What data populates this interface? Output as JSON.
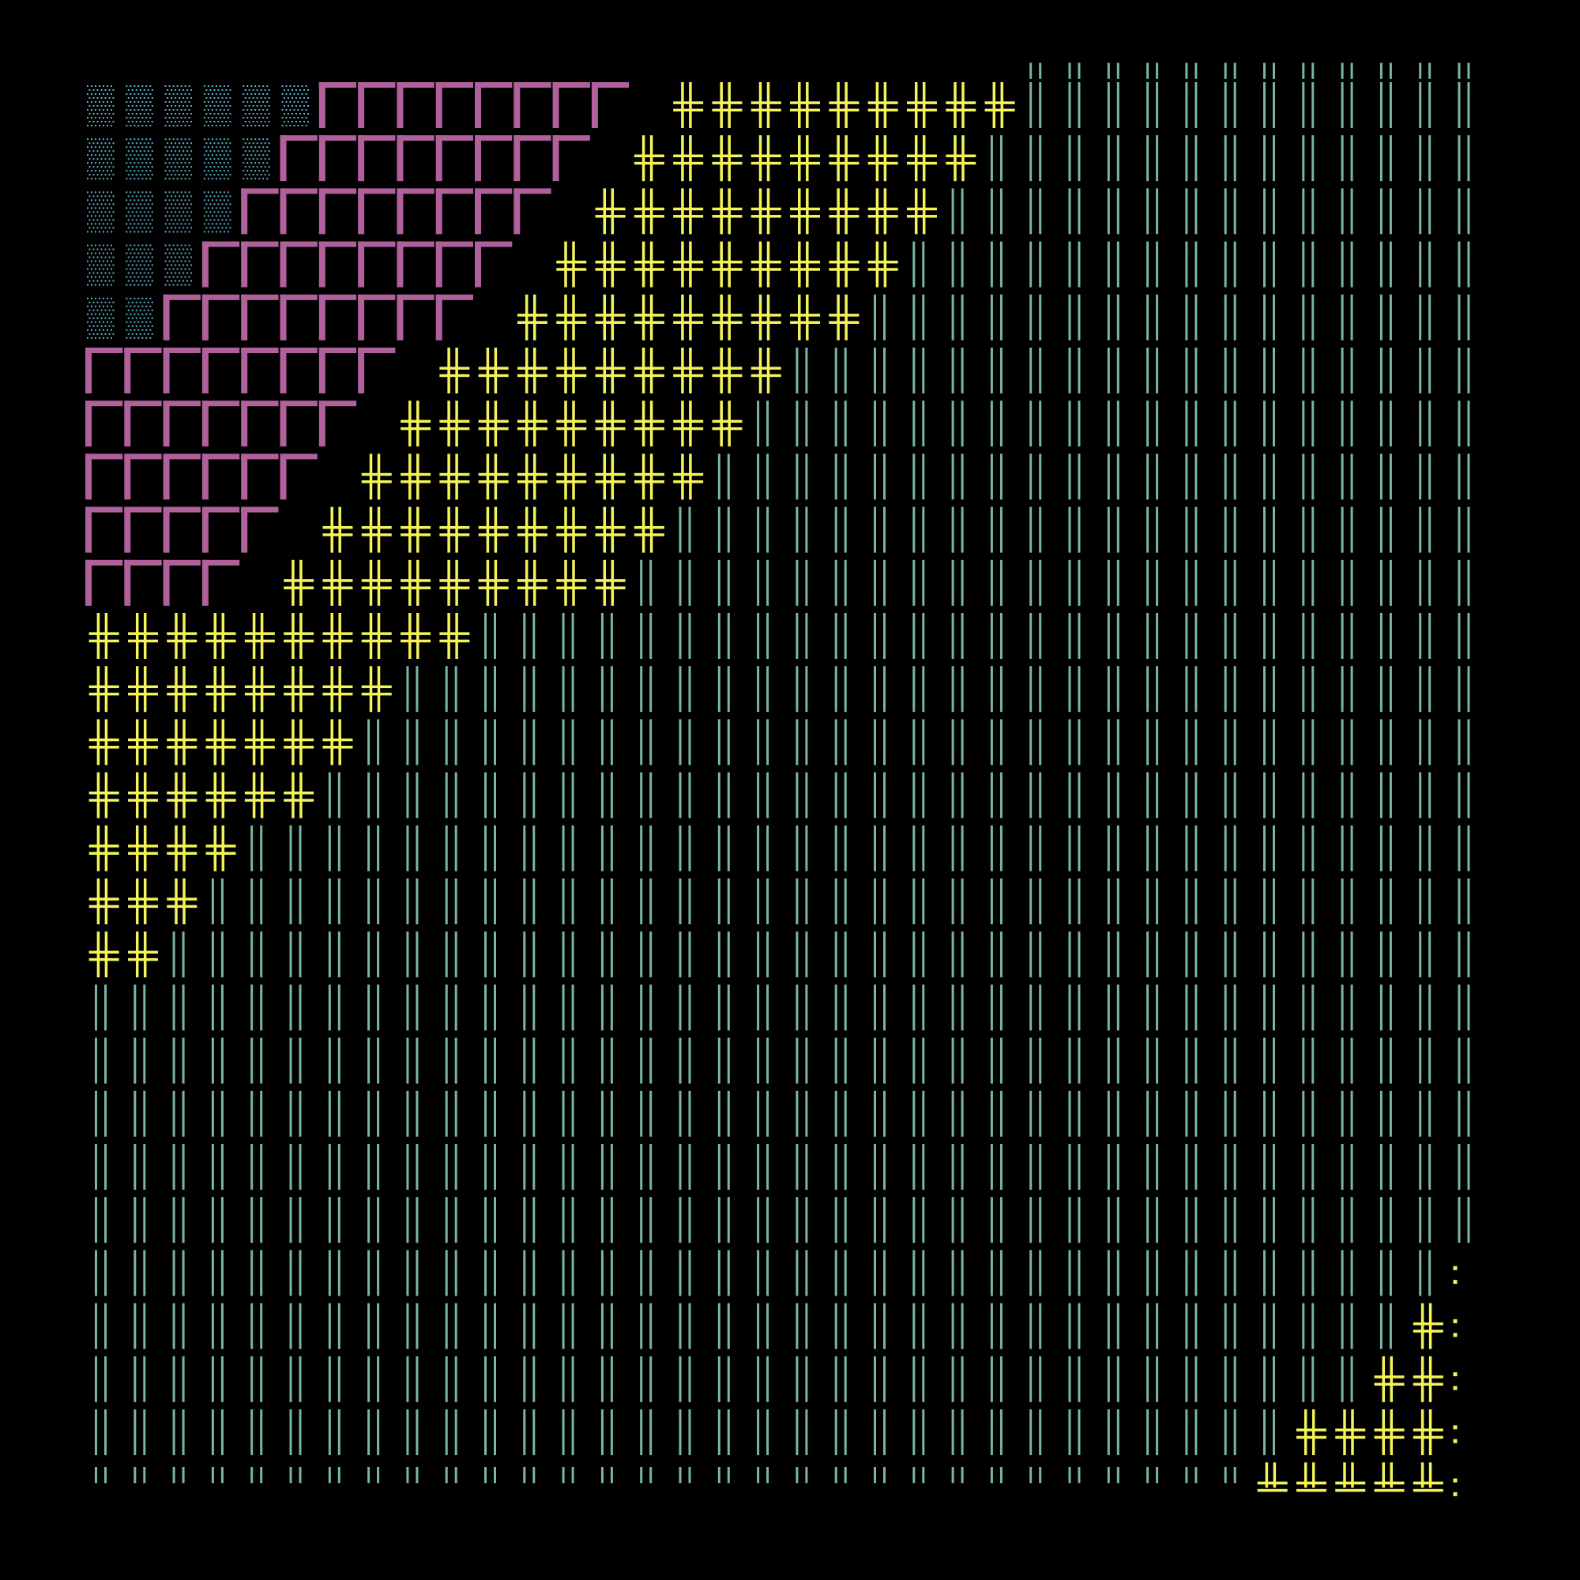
{
  "canvas": {
    "background": "#000000"
  },
  "grid": {
    "cols": 36,
    "rows": 27
  },
  "palette": {
    "dots": "#5fb3c7",
    "frame": "#b0609a",
    "cross": "#f4f45a",
    "bars": "#79b6a8"
  },
  "glyphs": {
    "dots": "dotted-shade-glyph",
    "frame": "box-frame-glyph",
    "cross": "double-cross-glyph",
    "bars": "double-vertical-bar-glyph",
    "crossBottom": "double-up-horizontal-glyph",
    "colon": "colon-glyph"
  }
}
